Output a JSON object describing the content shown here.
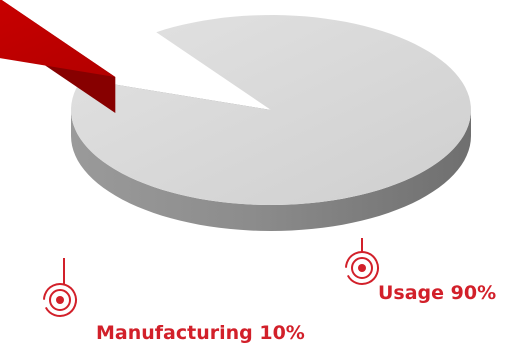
{
  "chart_data": {
    "type": "pie",
    "style": "3d-exploded",
    "categories": [
      "Usage",
      "Manufacturing"
    ],
    "values": [
      90,
      10
    ],
    "unit": "%",
    "labels": [
      "Usage 90%",
      "Manufacturing 10%"
    ],
    "colors": {
      "Usage": "#d6d6d6",
      "Manufacturing": "#c40000"
    },
    "exploded": [
      "Manufacturing"
    ],
    "legend": "none"
  },
  "label_color": "#d2202a",
  "marker_icon": "target-circle-icon"
}
